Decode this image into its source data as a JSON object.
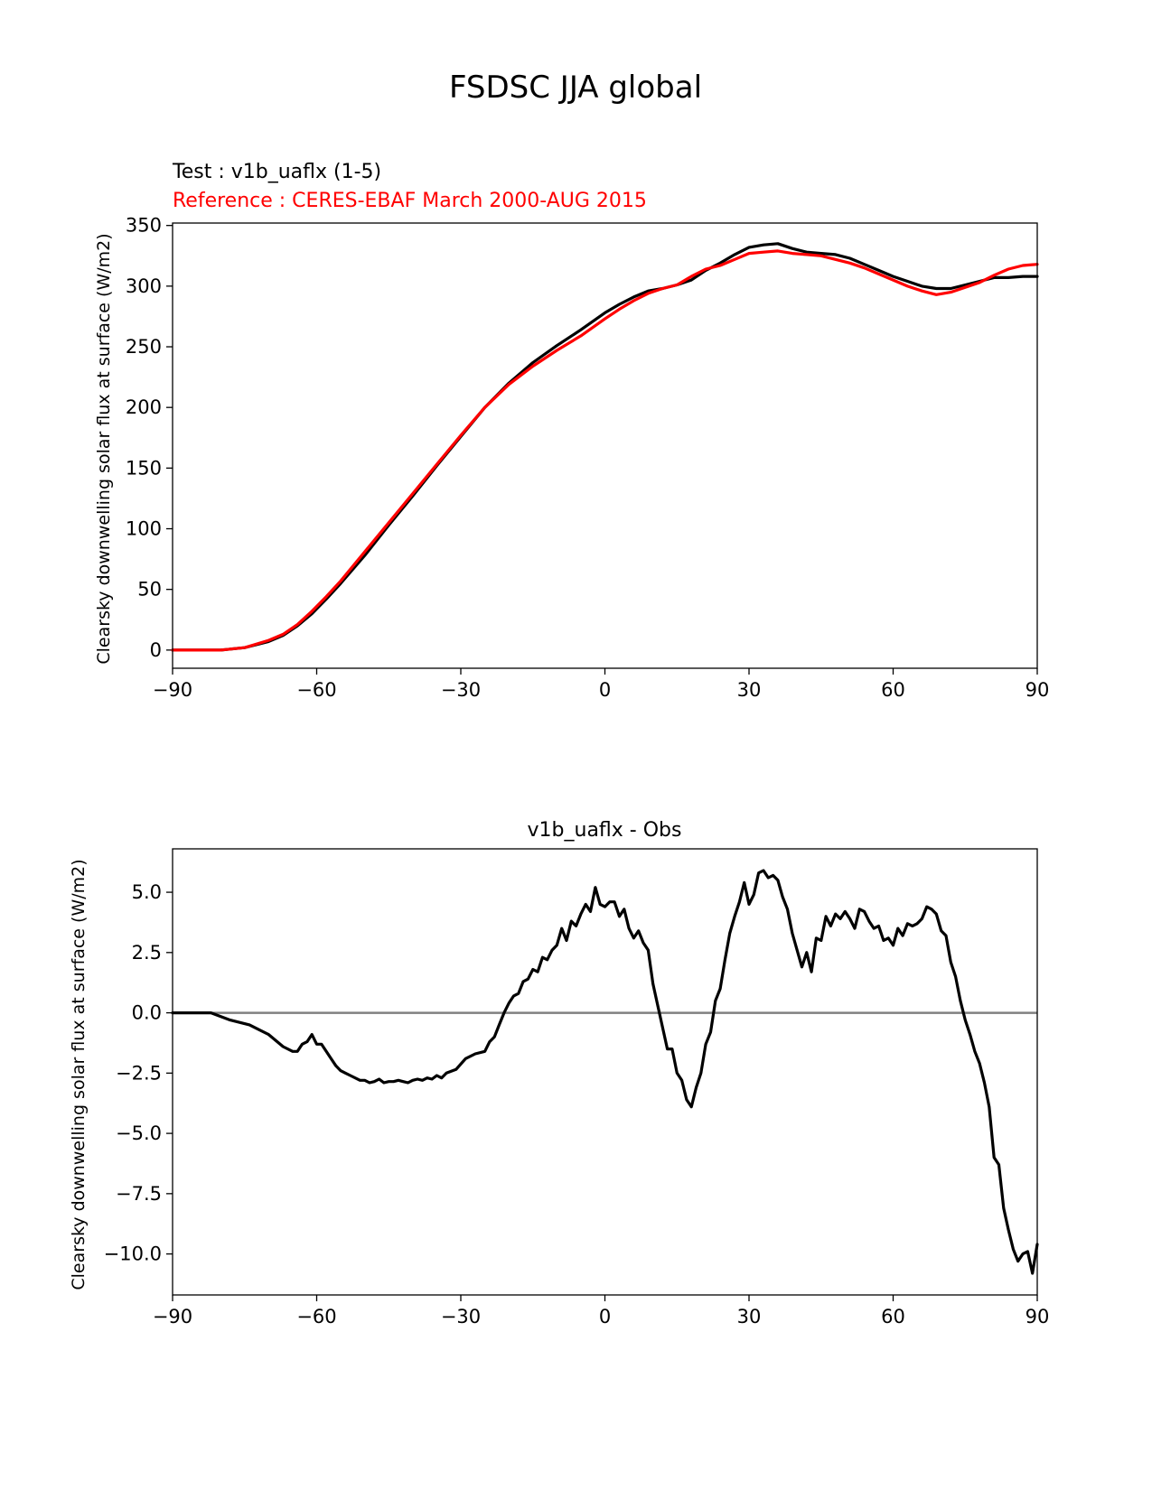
{
  "figure": {
    "title": "FSDSC JJA global"
  },
  "colors": {
    "test": "#000000",
    "reference": "#ff0000",
    "zero_line": "#808080",
    "axes": "#000000"
  },
  "chart_data": [
    {
      "type": "line",
      "subtitle_test": "Test : v1b_uaflx (1-5)",
      "subtitle_reference": "Reference : CERES-EBAF March 2000-AUG 2015",
      "xlabel": "",
      "ylabel": "Clearsky downwelling solar flux at surface (W/m2)",
      "xlim": [
        -90,
        90
      ],
      "ylim": [
        -15,
        352
      ],
      "xticks": [
        -90,
        -60,
        -30,
        0,
        30,
        60,
        90
      ],
      "xtick_labels": [
        "−90",
        "−60",
        "−30",
        "0",
        "30",
        "60",
        "90"
      ],
      "yticks": [
        0,
        50,
        100,
        150,
        200,
        250,
        300,
        350
      ],
      "ytick_labels": [
        "0",
        "50",
        "100",
        "150",
        "200",
        "250",
        "300",
        "350"
      ],
      "series": [
        {
          "role": "test",
          "x": [
            -90,
            -85,
            -80,
            -75,
            -70,
            -67,
            -64,
            -61,
            -58,
            -55,
            -50,
            -45,
            -40,
            -35,
            -30,
            -25,
            -20,
            -15,
            -10,
            -5,
            0,
            3,
            6,
            9,
            12,
            15,
            18,
            21,
            24,
            27,
            30,
            33,
            36,
            39,
            42,
            45,
            48,
            51,
            54,
            57,
            60,
            63,
            66,
            69,
            72,
            75,
            78,
            81,
            84,
            87,
            90
          ],
          "y": [
            0,
            0,
            0,
            2,
            7,
            12,
            20,
            30,
            42,
            55,
            78,
            103,
            127,
            152,
            176,
            200,
            220,
            237,
            251,
            264,
            278,
            285,
            291,
            296,
            298,
            301,
            305,
            313,
            319,
            326,
            332,
            334,
            335,
            331,
            328,
            327,
            326,
            323,
            318,
            313,
            308,
            304,
            300,
            298,
            298,
            301,
            304,
            307,
            307,
            308,
            308
          ]
        },
        {
          "role": "reference",
          "x": [
            -90,
            -85,
            -80,
            -75,
            -70,
            -67,
            -64,
            -61,
            -58,
            -55,
            -50,
            -45,
            -40,
            -35,
            -30,
            -25,
            -20,
            -15,
            -10,
            -5,
            0,
            3,
            6,
            9,
            12,
            15,
            18,
            21,
            24,
            27,
            30,
            33,
            36,
            39,
            42,
            45,
            48,
            51,
            54,
            57,
            60,
            63,
            66,
            69,
            72,
            75,
            78,
            81,
            84,
            87,
            90
          ],
          "y": [
            0,
            0,
            0,
            2,
            8,
            13,
            21,
            32,
            44,
            57,
            81,
            105,
            129,
            153,
            177,
            200,
            219,
            234,
            247,
            259,
            273,
            281,
            288,
            294,
            298,
            301,
            308,
            314,
            317,
            322,
            327,
            328,
            329,
            327,
            326,
            325,
            322,
            319,
            315,
            310,
            305,
            300,
            296,
            293,
            295,
            299,
            303,
            309,
            314,
            317,
            318
          ]
        }
      ]
    },
    {
      "type": "line",
      "title": "v1b_uaflx - Obs",
      "xlabel": "",
      "ylabel": "Clearsky downwelling solar flux at surface (W/m2)",
      "xlim": [
        -90,
        90
      ],
      "ylim": [
        -11.7,
        6.8
      ],
      "xticks": [
        -90,
        -60,
        -30,
        0,
        30,
        60,
        90
      ],
      "xtick_labels": [
        "−90",
        "−60",
        "−30",
        "0",
        "30",
        "60",
        "90"
      ],
      "yticks": [
        5.0,
        2.5,
        0.0,
        -2.5,
        -5.0,
        -7.5,
        -10.0
      ],
      "ytick_labels": [
        "5.0",
        "2.5",
        "0.0",
        "−2.5",
        "−5.0",
        "−7.5",
        "−10.0"
      ],
      "zero_line": 0,
      "series": [
        {
          "role": "difference",
          "x": [
            -90,
            -82,
            -78,
            -74,
            -70,
            -67,
            -65,
            -64,
            -63,
            -62,
            -61,
            -60,
            -59,
            -58,
            -57,
            -56,
            -55,
            -53,
            -51,
            -50,
            -49,
            -48,
            -47,
            -46,
            -45,
            -44,
            -43,
            -42,
            -41,
            -40,
            -39,
            -38,
            -37,
            -36,
            -35,
            -34,
            -33,
            -31,
            -29,
            -27,
            -25,
            -24,
            -23,
            -22,
            -21,
            -20,
            -19,
            -18,
            -17,
            -16,
            -15,
            -14,
            -13,
            -12,
            -11,
            -10,
            -9,
            -8,
            -7,
            -6,
            -5,
            -4,
            -3,
            -2,
            -1,
            0,
            1,
            2,
            3,
            4,
            5,
            6,
            7,
            8,
            9,
            10,
            11,
            12,
            13,
            14,
            15,
            16,
            17,
            18,
            19,
            20,
            21,
            22,
            23,
            24,
            25,
            26,
            27,
            28,
            29,
            30,
            31,
            32,
            33,
            34,
            35,
            36,
            37,
            38,
            39,
            40,
            41,
            42,
            43,
            44,
            45,
            46,
            47,
            48,
            49,
            50,
            51,
            52,
            53,
            54,
            55,
            56,
            57,
            58,
            59,
            60,
            61,
            62,
            63,
            64,
            65,
            66,
            67,
            68,
            69,
            70,
            71,
            72,
            73,
            74,
            75,
            76,
            77,
            78,
            79,
            80,
            81,
            82,
            83,
            84,
            85,
            86,
            87,
            88,
            89,
            90
          ],
          "y": [
            0.0,
            0.0,
            -0.3,
            -0.5,
            -0.9,
            -1.4,
            -1.6,
            -1.6,
            -1.3,
            -1.2,
            -0.9,
            -1.3,
            -1.3,
            -1.6,
            -1.9,
            -2.2,
            -2.4,
            -2.6,
            -2.8,
            -2.8,
            -2.9,
            -2.85,
            -2.75,
            -2.9,
            -2.85,
            -2.85,
            -2.8,
            -2.85,
            -2.9,
            -2.8,
            -2.75,
            -2.8,
            -2.7,
            -2.75,
            -2.6,
            -2.7,
            -2.5,
            -2.35,
            -1.9,
            -1.7,
            -1.6,
            -1.2,
            -1.0,
            -0.5,
            0.0,
            0.4,
            0.7,
            0.8,
            1.3,
            1.4,
            1.8,
            1.7,
            2.3,
            2.2,
            2.6,
            2.8,
            3.5,
            3.0,
            3.8,
            3.6,
            4.1,
            4.5,
            4.2,
            5.2,
            4.5,
            4.4,
            4.6,
            4.6,
            4.0,
            4.3,
            3.5,
            3.1,
            3.4,
            2.9,
            2.6,
            1.2,
            0.3,
            -0.6,
            -1.5,
            -1.5,
            -2.5,
            -2.8,
            -3.6,
            -3.9,
            -3.1,
            -2.5,
            -1.3,
            -0.8,
            0.5,
            1.0,
            2.2,
            3.3,
            4.0,
            4.6,
            5.4,
            4.5,
            4.9,
            5.8,
            5.9,
            5.6,
            5.7,
            5.5,
            4.8,
            4.3,
            3.3,
            2.6,
            1.9,
            2.5,
            1.7,
            3.1,
            3.0,
            4.0,
            3.6,
            4.1,
            3.9,
            4.2,
            3.9,
            3.5,
            4.3,
            4.2,
            3.8,
            3.5,
            3.6,
            3.0,
            3.1,
            2.8,
            3.5,
            3.2,
            3.7,
            3.6,
            3.7,
            3.9,
            4.4,
            4.3,
            4.1,
            3.4,
            3.2,
            2.1,
            1.5,
            0.5,
            -0.3,
            -0.9,
            -1.6,
            -2.1,
            -2.9,
            -3.9,
            -6.0,
            -6.3,
            -8.1,
            -9.0,
            -9.8,
            -10.3,
            -10.0,
            -9.9,
            -10.8,
            -9.6
          ]
        }
      ]
    }
  ]
}
